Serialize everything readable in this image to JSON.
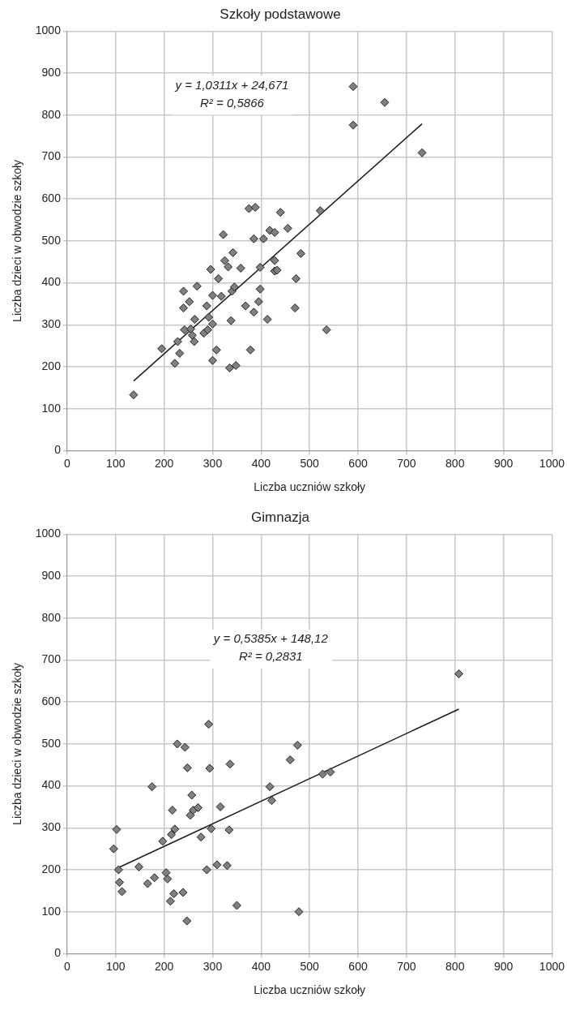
{
  "chart_data": [
    {
      "type": "scatter",
      "title": "Szkoły podstawowe",
      "xlabel": "Liczba uczniów szkoły",
      "ylabel": "Liczba dzieci w obwodzie szkoły",
      "xlim": [
        0,
        1000
      ],
      "ylim": [
        0,
        1000
      ],
      "xticks": [
        0,
        100,
        200,
        300,
        400,
        500,
        600,
        700,
        800,
        900,
        1000
      ],
      "yticks": [
        0,
        100,
        200,
        300,
        400,
        500,
        600,
        700,
        800,
        900,
        1000
      ],
      "grid": true,
      "legend": false,
      "line_style": "solid",
      "annotations": [
        "y = 1,0311x + 24,671",
        "R² = 0,5866"
      ],
      "series": [
        {
          "type": "scatter",
          "marker": "diamond",
          "color": "#808080",
          "x": [
            137,
            195,
            222,
            228,
            232,
            240,
            240,
            242,
            252,
            255,
            258,
            262,
            263,
            268,
            282,
            288,
            290,
            292,
            296,
            300,
            300,
            300,
            308,
            312,
            318,
            322,
            325,
            332,
            335,
            338,
            340,
            342,
            345,
            348,
            358,
            368,
            375,
            378,
            385,
            385,
            388,
            395,
            398,
            398,
            405,
            413,
            418,
            428,
            428,
            428,
            433,
            440,
            455,
            470,
            472,
            482,
            522,
            535,
            590,
            590,
            655,
            732
          ],
          "values": [
            133,
            243,
            208,
            260,
            232,
            340,
            380,
            288,
            355,
            290,
            275,
            260,
            313,
            392,
            280,
            345,
            288,
            318,
            432,
            215,
            302,
            370,
            240,
            410,
            368,
            515,
            453,
            438,
            197,
            310,
            380,
            472,
            390,
            203,
            435,
            345,
            577,
            240,
            330,
            505,
            580,
            355,
            437,
            385,
            505,
            313,
            525,
            520,
            453,
            428,
            430,
            568,
            530,
            340,
            410,
            470,
            572,
            288,
            868,
            776,
            830,
            710
          ]
        },
        {
          "type": "line",
          "marker": "none",
          "color": "#1a1a1a",
          "x": [
            137,
            732
          ],
          "values": [
            166,
            779
          ]
        }
      ]
    },
    {
      "type": "scatter",
      "title": "Gimnazja",
      "xlabel": "Liczba uczniów szkoły",
      "ylabel": "Liczba dzieci w obwodzie szkoły",
      "xlim": [
        0,
        1000
      ],
      "ylim": [
        0,
        1000
      ],
      "xticks": [
        0,
        100,
        200,
        300,
        400,
        500,
        600,
        700,
        800,
        900,
        1000
      ],
      "yticks": [
        0,
        100,
        200,
        300,
        400,
        500,
        600,
        700,
        800,
        900,
        1000
      ],
      "grid": true,
      "legend": false,
      "line_style": "solid",
      "annotations": [
        "y = 0,5385x + 148,12",
        "R² = 0,2831"
      ],
      "series": [
        {
          "type": "scatter",
          "marker": "diamond",
          "color": "#808080",
          "x": [
            96,
            102,
            106,
            108,
            113,
            148,
            166,
            175,
            180,
            197,
            204,
            207,
            213,
            215,
            217,
            220,
            222,
            227,
            239,
            243,
            247,
            248,
            254,
            257,
            260,
            270,
            276,
            288,
            292,
            294,
            297,
            309,
            316,
            330,
            334,
            336,
            350,
            418,
            422,
            460,
            475,
            478,
            527,
            543,
            808
          ],
          "values": [
            250,
            296,
            200,
            170,
            148,
            207,
            167,
            398,
            181,
            268,
            193,
            178,
            125,
            284,
            342,
            143,
            297,
            500,
            146,
            492,
            78,
            443,
            330,
            378,
            342,
            348,
            278,
            200,
            547,
            442,
            298,
            212,
            350,
            210,
            295,
            452,
            115,
            398,
            365,
            462,
            497,
            100,
            428,
            433,
            667
          ]
        },
        {
          "type": "line",
          "marker": "none",
          "color": "#1a1a1a",
          "x": [
            100,
            808
          ],
          "values": [
            202,
            583
          ]
        }
      ]
    }
  ]
}
